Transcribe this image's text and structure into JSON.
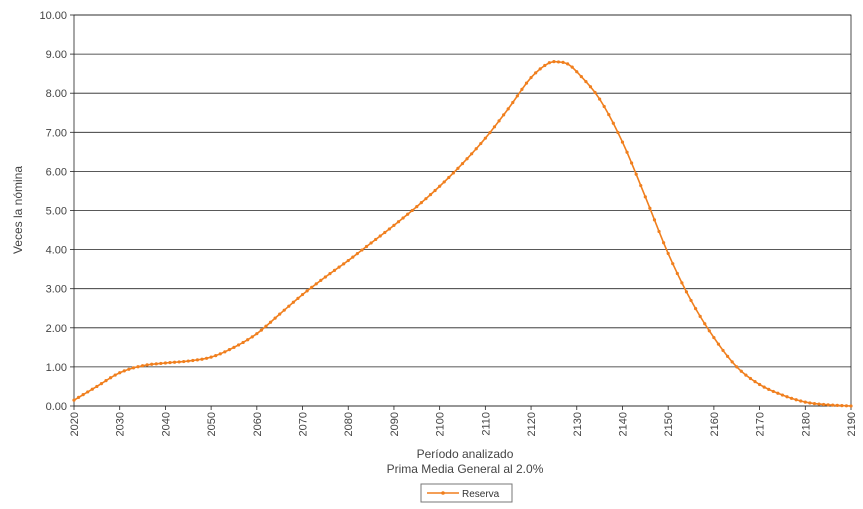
{
  "chart_data": {
    "type": "line",
    "title": "",
    "xlabel": "Período analizado",
    "xlabel_sub": "Prima Media General al 2.0%",
    "ylabel": "Veces la nómina",
    "xlim": [
      2020,
      2190
    ],
    "ylim": [
      0,
      10
    ],
    "x_ticks": [
      "2020",
      "2030",
      "2040",
      "2050",
      "2060",
      "2070",
      "2080",
      "2090",
      "2100",
      "2110",
      "2120",
      "2130",
      "2140",
      "2150",
      "2160",
      "2170",
      "2180",
      "2190"
    ],
    "y_ticks": [
      "0.00",
      "1.00",
      "2.00",
      "3.00",
      "4.00",
      "5.00",
      "6.00",
      "7.00",
      "8.00",
      "9.00",
      "10.00"
    ],
    "grid": "horizontal",
    "legend_position": "bottom-center",
    "series": [
      {
        "name": "Reserva",
        "color": "#F07F1E",
        "marker": "dot",
        "points": [
          [
            2020,
            0.15
          ],
          [
            2025,
            0.5
          ],
          [
            2030,
            0.85
          ],
          [
            2035,
            1.03
          ],
          [
            2040,
            1.1
          ],
          [
            2045,
            1.15
          ],
          [
            2050,
            1.25
          ],
          [
            2055,
            1.5
          ],
          [
            2060,
            1.85
          ],
          [
            2065,
            2.35
          ],
          [
            2070,
            2.85
          ],
          [
            2075,
            3.3
          ],
          [
            2080,
            3.72
          ],
          [
            2085,
            4.17
          ],
          [
            2090,
            4.62
          ],
          [
            2095,
            5.1
          ],
          [
            2100,
            5.62
          ],
          [
            2105,
            6.2
          ],
          [
            2110,
            6.85
          ],
          [
            2115,
            7.6
          ],
          [
            2120,
            8.4
          ],
          [
            2124,
            8.78
          ],
          [
            2126,
            8.8
          ],
          [
            2128,
            8.75
          ],
          [
            2130,
            8.55
          ],
          [
            2135,
            7.85
          ],
          [
            2140,
            6.75
          ],
          [
            2145,
            5.35
          ],
          [
            2150,
            3.9
          ],
          [
            2155,
            2.7
          ],
          [
            2160,
            1.75
          ],
          [
            2165,
            1.0
          ],
          [
            2170,
            0.55
          ],
          [
            2175,
            0.28
          ],
          [
            2180,
            0.1
          ],
          [
            2185,
            0.03
          ],
          [
            2190,
            0.0
          ]
        ]
      }
    ]
  }
}
